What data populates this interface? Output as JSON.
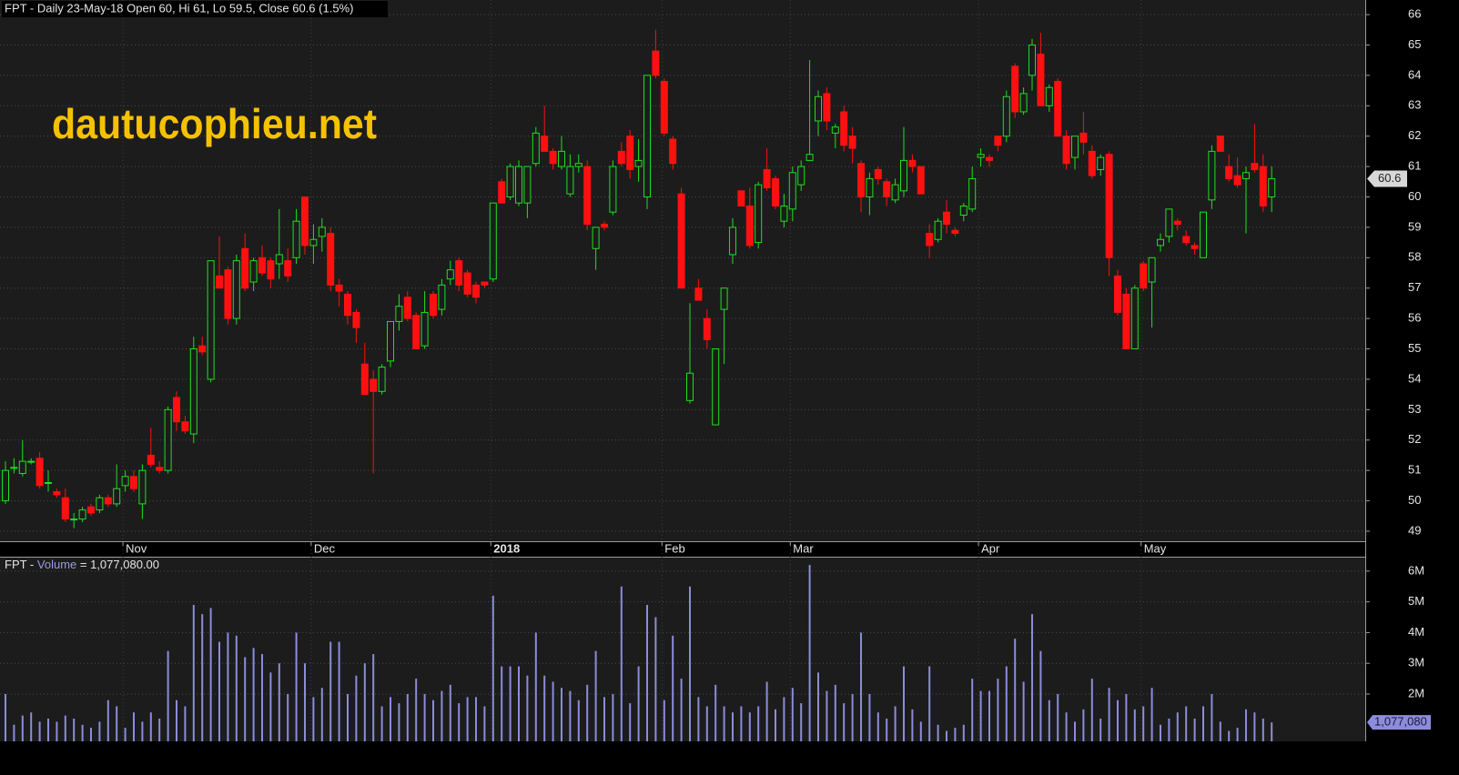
{
  "chart_data": [
    {
      "type": "candlestick",
      "title": "FPT - Daily 23-May-18 Open 60, Hi 61, Lo 59.5, Close 60.6 (1.5%)",
      "watermark": "dautucophieu.net",
      "categories": [
        null,
        null,
        null,
        null,
        null,
        null,
        null,
        null,
        null,
        null,
        null,
        null,
        null,
        null,
        "Nov",
        null,
        null,
        null,
        null,
        null,
        null,
        null,
        null,
        null,
        null,
        null,
        null,
        null,
        null,
        null,
        null,
        null,
        null,
        null,
        null,
        null,
        "Dec",
        null,
        null,
        null,
        null,
        null,
        null,
        null,
        null,
        null,
        null,
        null,
        null,
        null,
        null,
        null,
        null,
        null,
        null,
        null,
        null,
        "2018",
        null,
        null,
        null,
        null,
        null,
        null,
        null,
        null,
        null,
        null,
        null,
        null,
        null,
        null,
        null,
        null,
        null,
        null,
        null,
        "Feb",
        null,
        null,
        null,
        null,
        null,
        null,
        null,
        null,
        null,
        null,
        null,
        null,
        null,
        null,
        "Mar",
        null,
        null,
        null,
        null,
        null,
        null,
        null,
        null,
        null,
        null,
        null,
        null,
        null,
        null,
        null,
        null,
        null,
        null,
        null,
        null,
        null,
        "Apr",
        null,
        null,
        null,
        null,
        null,
        null,
        null,
        null,
        null,
        null,
        null,
        null,
        null,
        null,
        null,
        null,
        null,
        null,
        "May",
        null,
        null,
        null,
        null,
        null,
        null,
        null,
        null,
        null,
        null,
        null,
        null,
        null,
        null,
        null
      ],
      "open": [
        50,
        51.1,
        50.9,
        51.3,
        51.4,
        50.6,
        50.3,
        50.1,
        49.4,
        49.4,
        49.8,
        49.7,
        50.1,
        49.9,
        50.5,
        50.8,
        49.9,
        51.5,
        51.1,
        51,
        53.4,
        52.6,
        52.2,
        55.1,
        54,
        57.4,
        57.6,
        56,
        58.3,
        57.2,
        58,
        57.9,
        57.8,
        57.9,
        58,
        60,
        58.4,
        58.7,
        58.8,
        57.1,
        56.8,
        56.2,
        54.5,
        54,
        53.6,
        54.6,
        55.9,
        56.7,
        56.1,
        55.1,
        56.8,
        56.3,
        57.3,
        57.9,
        57.5,
        57.1,
        57.2,
        57.3,
        60.5,
        60,
        59.8,
        59.8,
        61.1,
        62,
        61.5,
        61,
        60.1,
        61,
        61,
        58.3,
        59.1,
        59.5,
        61.5,
        62,
        61,
        60,
        64.8,
        63.8,
        61.9,
        60.1,
        53.3,
        57,
        56,
        52.5,
        56.3,
        58.1,
        60.2,
        59.7,
        58.5,
        60.9,
        60.6,
        59.2,
        59.6,
        60.4,
        61.2,
        62.5,
        63.4,
        62.1,
        62.8,
        62,
        61.1,
        60,
        60.9,
        60.5,
        59.9,
        60.2,
        61.2,
        61,
        58.8,
        58.6,
        59.5,
        58.9,
        59.4,
        59.6,
        61.3,
        61.3,
        62,
        62,
        64.3,
        62.8,
        64,
        64.7,
        63,
        63.8,
        62,
        61.3,
        62.1,
        61.5,
        60.9,
        61.4,
        57.4,
        56.8,
        55,
        57.8,
        57.2,
        58.4,
        58.7,
        59.2,
        58.7,
        58.4,
        58,
        59.9,
        62,
        61,
        60.7,
        60.6,
        61.1,
        61,
        60
      ],
      "high": [
        51.3,
        51.4,
        52,
        51.4,
        51.6,
        51,
        50.4,
        50.4,
        49.6,
        49.8,
        49.9,
        50.2,
        50.2,
        51.2,
        51,
        51,
        51.2,
        52.4,
        51.3,
        53.1,
        53.6,
        52.8,
        55.4,
        55.4,
        57.9,
        58.7,
        57.7,
        58.1,
        58.8,
        58,
        58.4,
        58,
        59.6,
        58.3,
        59.6,
        60,
        59.1,
        59.3,
        59,
        57.3,
        56.9,
        56.3,
        55.2,
        54.3,
        54.5,
        55.9,
        56.8,
        56.9,
        56.2,
        56.9,
        56.9,
        57.3,
        57.9,
        58,
        57.6,
        57.2,
        57.2,
        59.8,
        60.6,
        61.1,
        61.2,
        61,
        62.3,
        63,
        61.6,
        62,
        61.4,
        61.4,
        61.2,
        59,
        59.2,
        61.2,
        61.8,
        62.2,
        61.9,
        64,
        65.5,
        63.9,
        62,
        60.3,
        56.5,
        57.3,
        56.3,
        55,
        57,
        59.3,
        60.2,
        60.3,
        60.5,
        61.6,
        60.7,
        60.1,
        61,
        61.2,
        64.5,
        63.5,
        63.6,
        62.4,
        63,
        62.3,
        61.2,
        60.8,
        61,
        60.6,
        60.6,
        62.3,
        61.4,
        61,
        59.1,
        59.3,
        59.9,
        59,
        59.8,
        61,
        61.6,
        61.4,
        62,
        63.5,
        64.4,
        63.6,
        65.2,
        65.4,
        63.7,
        63.9,
        62.2,
        62,
        62.8,
        61.7,
        61.4,
        61.5,
        57.6,
        57,
        57.1,
        57.9,
        58,
        58.8,
        59.6,
        59.3,
        58.9,
        58.5,
        59.5,
        61.7,
        62,
        61.4,
        61.3,
        61,
        62.4,
        61.4,
        61
      ],
      "low": [
        49.9,
        50.9,
        50.8,
        51.2,
        50.4,
        50.3,
        50.1,
        49.3,
        49.1,
        49.3,
        49.5,
        49.6,
        49.8,
        49.8,
        50.3,
        50.3,
        49.4,
        51.1,
        50.9,
        50.9,
        52.3,
        52.2,
        51.9,
        54.8,
        53.9,
        57,
        55.8,
        55.8,
        56.9,
        56.9,
        57.4,
        57,
        57.3,
        57.2,
        57.8,
        58.1,
        57.8,
        58.2,
        56.9,
        56.4,
        55.8,
        55.2,
        53.5,
        50.9,
        53.5,
        54.4,
        55.6,
        55.9,
        55,
        55,
        56,
        56.1,
        57.1,
        56.9,
        56.7,
        56.5,
        57,
        57.2,
        59.8,
        59.9,
        59.7,
        59.3,
        61,
        61.5,
        60.9,
        60.9,
        60,
        60.8,
        58.9,
        57.6,
        58.9,
        59.4,
        61,
        60.6,
        60.5,
        59.6,
        63.9,
        62,
        60.9,
        57,
        53.2,
        56.6,
        55,
        52.5,
        54.5,
        57.8,
        59.7,
        58.3,
        58.3,
        60.2,
        59.6,
        59,
        59.2,
        60.2,
        61.2,
        62,
        62.2,
        61.6,
        61.5,
        61.1,
        59.5,
        59.4,
        60.4,
        59.7,
        59.8,
        60,
        60.8,
        60.1,
        58,
        58.5,
        58.8,
        58.7,
        59.2,
        59.5,
        61,
        61,
        61.5,
        61.8,
        62.6,
        62.7,
        63.5,
        63,
        62.8,
        62,
        60.9,
        60.9,
        61.4,
        60.6,
        60.7,
        57.4,
        56.1,
        55,
        55,
        56.9,
        55.7,
        58.2,
        58.5,
        58.9,
        58.4,
        58.1,
        58,
        59.6,
        61.5,
        60.5,
        60.3,
        58.8,
        60.8,
        59.5,
        59.5
      ],
      "close": [
        51,
        51.1,
        51.3,
        51.3,
        50.5,
        50.6,
        50.2,
        49.4,
        49.4,
        49.7,
        49.6,
        50.1,
        49.9,
        50.4,
        50.8,
        50.4,
        51,
        51.2,
        51,
        53,
        52.6,
        52.3,
        55,
        54.9,
        57.9,
        57,
        56,
        57.9,
        57,
        57.9,
        57.5,
        57.3,
        58.1,
        57.4,
        59.2,
        58.4,
        58.6,
        59,
        57.1,
        56.9,
        56.1,
        55.7,
        53.5,
        53.6,
        54.4,
        55.9,
        56.4,
        56,
        55,
        56.2,
        56.1,
        57.1,
        57.6,
        57.1,
        56.8,
        56.7,
        57.1,
        59.8,
        59.8,
        61,
        61,
        61,
        62.1,
        61.5,
        61.1,
        61.5,
        61,
        61.1,
        59.1,
        59,
        59,
        61,
        61.1,
        60.9,
        61.2,
        64,
        64,
        62.1,
        61.1,
        57,
        54.2,
        56.6,
        55.3,
        55,
        57,
        59,
        59.7,
        58.4,
        60.4,
        60.3,
        59.7,
        59.7,
        60.8,
        61,
        61.4,
        63.3,
        62.5,
        62.3,
        61.7,
        61.6,
        60,
        60.6,
        60.6,
        60,
        60.4,
        61.2,
        61,
        60.1,
        58.4,
        59.2,
        59.1,
        58.8,
        59.7,
        60.6,
        61.4,
        61.2,
        61.7,
        63.3,
        62.8,
        63.4,
        65,
        63,
        63.6,
        62,
        61.1,
        62,
        61.8,
        60.7,
        61.3,
        58,
        56.2,
        55,
        57,
        57,
        58,
        58.6,
        59.6,
        59.1,
        58.5,
        58.3,
        59.5,
        61.5,
        61.5,
        60.6,
        60.4,
        60.8,
        60.9,
        59.7,
        60.6
      ],
      "up_color": "#1ee01e",
      "down_color": "#ff1010",
      "ylim": [
        48.67,
        66.48
      ],
      "yticks": [
        49,
        50,
        51,
        52,
        53,
        54,
        55,
        56,
        57,
        58,
        59,
        60,
        61,
        62,
        63,
        64,
        65,
        66
      ],
      "grid": true
    },
    {
      "type": "bar",
      "title": {
        "symbol": "FPT -",
        "name": "Volume",
        "value": "= 1,077,080.00"
      },
      "color": "#8c8cdc",
      "values": [
        2000000,
        1000000,
        1300000,
        1400000,
        1100000,
        1200000,
        1100000,
        1300000,
        1200000,
        1000000,
        900000,
        1100000,
        1800000,
        1600000,
        900000,
        1400000,
        1100000,
        1400000,
        1200000,
        3400000,
        1800000,
        1600000,
        4900000,
        4600000,
        4800000,
        3700000,
        4000000,
        3900000,
        3200000,
        3500000,
        3300000,
        2700000,
        3000000,
        2000000,
        4000000,
        3000000,
        1900000,
        2200000,
        3700000,
        3700000,
        2000000,
        2600000,
        3000000,
        3300000,
        1600000,
        1900000,
        1700000,
        2000000,
        2500000,
        2000000,
        1800000,
        2100000,
        2300000,
        1700000,
        1900000,
        1900000,
        1600000,
        5200000,
        2900000,
        2900000,
        2900000,
        2600000,
        4000000,
        2600000,
        2400000,
        2200000,
        2100000,
        1800000,
        2300000,
        3400000,
        1900000,
        2000000,
        5500000,
        1700000,
        2900000,
        4900000,
        4500000,
        1800000,
        3900000,
        2500000,
        5500000,
        1900000,
        1600000,
        2300000,
        1600000,
        1400000,
        1600000,
        1400000,
        1600000,
        2400000,
        1500000,
        1900000,
        2200000,
        1700000,
        6200000,
        2700000,
        2100000,
        2300000,
        1700000,
        2000000,
        4000000,
        2000000,
        1400000,
        1200000,
        1600000,
        2900000,
        1500000,
        1100000,
        2900000,
        1000000,
        800000,
        900000,
        1000000,
        2500000,
        2100000,
        2100000,
        2500000,
        2900000,
        3800000,
        2400000,
        4600000,
        3400000,
        1800000,
        2000000,
        1400000,
        1100000,
        1500000,
        2500000,
        1200000,
        2200000,
        1800000,
        2000000,
        1500000,
        1600000,
        2200000,
        1000000,
        1200000,
        1400000,
        1600000,
        1200000,
        1600000,
        2000000,
        1100000,
        800000,
        900000,
        1500000,
        1400000,
        1200000,
        1077080
      ],
      "last_label": "1,077,080",
      "ylim": [
        460000,
        6470000
      ],
      "yticks": [
        {
          "value": 2000000,
          "label": "2M"
        },
        {
          "value": 3000000,
          "label": "3M"
        },
        {
          "value": 4000000,
          "label": "4M"
        },
        {
          "value": 5000000,
          "label": "5M"
        },
        {
          "value": 6000000,
          "label": "6M"
        }
      ],
      "grid": true
    }
  ]
}
